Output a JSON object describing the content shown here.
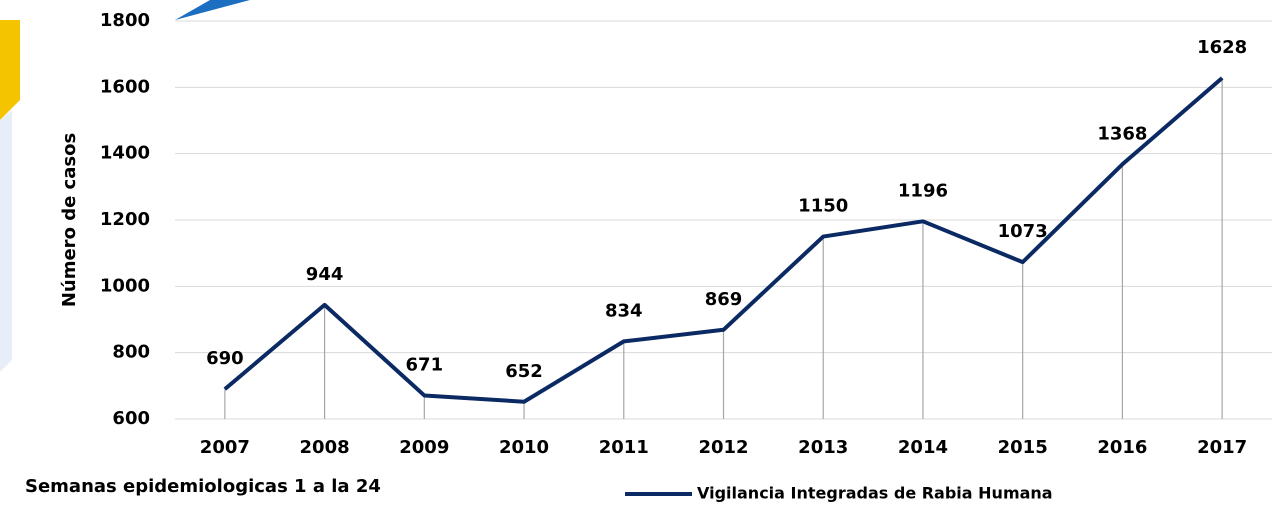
{
  "chart_data": {
    "type": "line",
    "y_label": "Número de casos",
    "note": "Semanas epidemiologicas 1 a la 24",
    "categories": [
      "2007",
      "2008",
      "2009",
      "2010",
      "2011",
      "2012",
      "2013",
      "2014",
      "2015",
      "2016",
      "2017"
    ],
    "series": [
      {
        "name": "Vigilancia Integradas de Rabia Humana",
        "color": "#0b2a63",
        "values": [
          690,
          944,
          671,
          652,
          834,
          869,
          1150,
          1196,
          1073,
          1368,
          1628
        ]
      }
    ],
    "ylim": [
      600,
      1800
    ],
    "yticks": [
      600,
      800,
      1000,
      1200,
      1400,
      1600,
      1800
    ],
    "grid": true,
    "drop_lines": true,
    "data_labels": true,
    "legend": "bottom"
  }
}
